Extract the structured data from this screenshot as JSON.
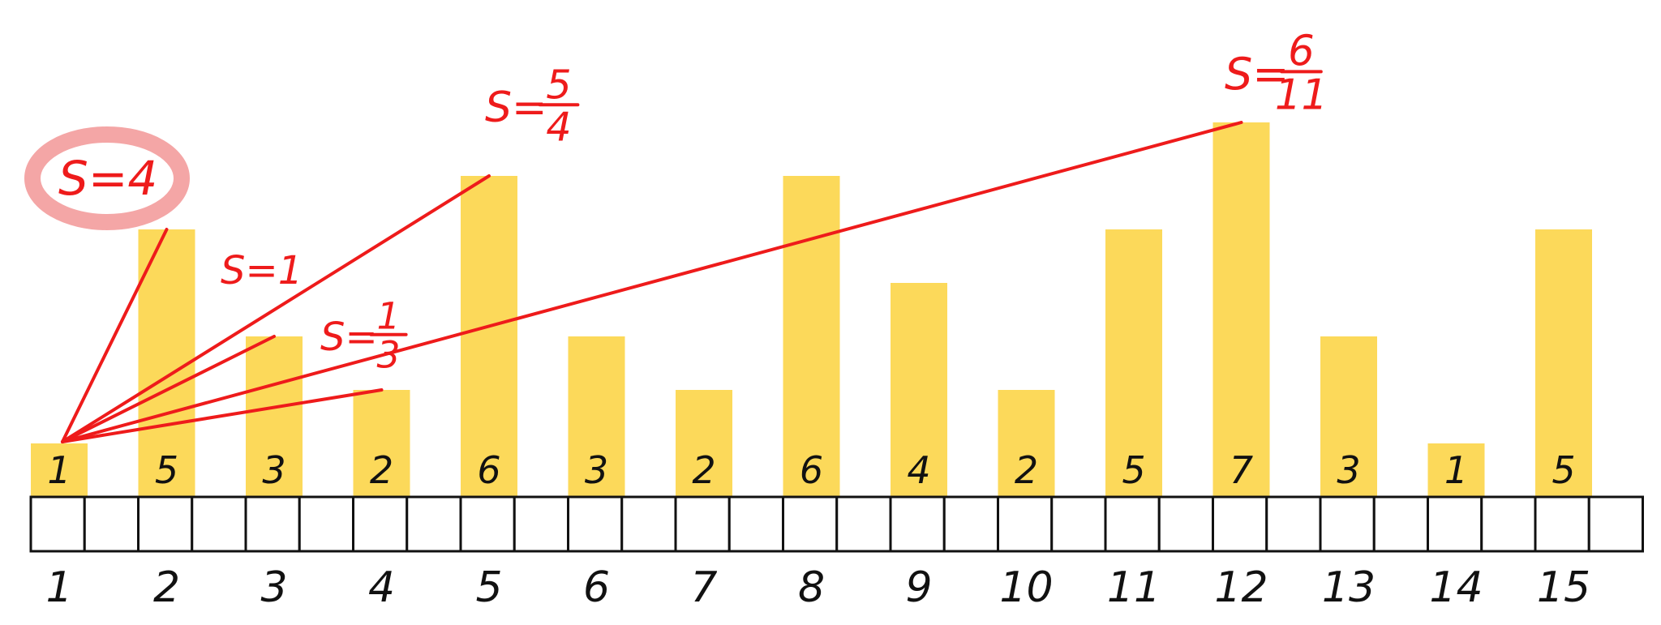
{
  "colors": {
    "bar": "#FCD95A",
    "line": "#EE1B1B",
    "highlight": "#F4A6A6",
    "ink": "#111111",
    "cell_border": "#111111"
  },
  "bars": [
    {
      "index": "1",
      "value": 1
    },
    {
      "index": "2",
      "value": 5
    },
    {
      "index": "3",
      "value": 3
    },
    {
      "index": "4",
      "value": 2
    },
    {
      "index": "5",
      "value": 6
    },
    {
      "index": "6",
      "value": 3
    },
    {
      "index": "7",
      "value": 2
    },
    {
      "index": "8",
      "value": 6
    },
    {
      "index": "9",
      "value": 4
    },
    {
      "index": "10",
      "value": 2
    },
    {
      "index": "11",
      "value": 5
    },
    {
      "index": "12",
      "value": 7
    },
    {
      "index": "13",
      "value": 3
    },
    {
      "index": "14",
      "value": 1
    },
    {
      "index": "15",
      "value": 5
    }
  ],
  "lines": [
    {
      "target_index": 2,
      "label": "S=4",
      "whole": "S=4",
      "highlighted": true
    },
    {
      "target_index": 3,
      "label": "S=1",
      "whole": "S=1"
    },
    {
      "target_index": 4,
      "label": "S=1/3",
      "prefix": "S=",
      "numerator": "1",
      "denominator": "3"
    },
    {
      "target_index": 5,
      "label": "S=5/4",
      "prefix": "S=",
      "numerator": "5",
      "denominator": "4"
    },
    {
      "target_index": 12,
      "label": "S=6/11",
      "prefix": "S=",
      "numerator": "6",
      "denominator": "11"
    }
  ]
}
